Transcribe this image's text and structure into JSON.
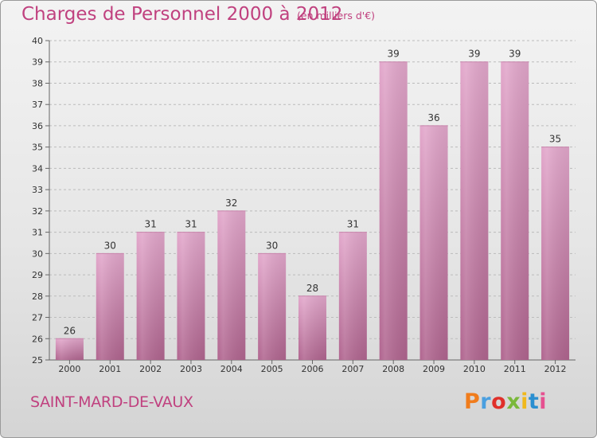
{
  "header": {
    "title": "Charges de Personnel 2000 à 2012",
    "subtitle": "(en milliers d'€)"
  },
  "footer": {
    "commune": "SAINT-MARD-DE-VAUX",
    "logo_text": "Proxiti"
  },
  "colors": {
    "title": "#c0417f",
    "bar_top": "#e2a7cb",
    "bar_bottom": "#b0658f",
    "grid": "#bbbbbb",
    "logo_letters": [
      "#f07c1c",
      "#4a9fe0",
      "#e0302a",
      "#7ab83a",
      "#f0b81c",
      "#2a8fd0",
      "#e65090"
    ]
  },
  "chart_data": {
    "type": "bar",
    "categories": [
      "2000",
      "2001",
      "2002",
      "2003",
      "2004",
      "2005",
      "2006",
      "2007",
      "2008",
      "2009",
      "2010",
      "2011",
      "2012"
    ],
    "values": [
      26,
      30,
      31,
      31,
      32,
      30,
      28,
      31,
      39,
      36,
      39,
      39,
      35
    ],
    "ylim": [
      25,
      40
    ],
    "yticks": [
      25,
      26,
      27,
      28,
      29,
      30,
      31,
      32,
      33,
      34,
      35,
      36,
      37,
      38,
      39,
      40
    ],
    "grid": true,
    "title": "Charges de Personnel 2000 à 2012",
    "xlabel": "",
    "ylabel": ""
  }
}
